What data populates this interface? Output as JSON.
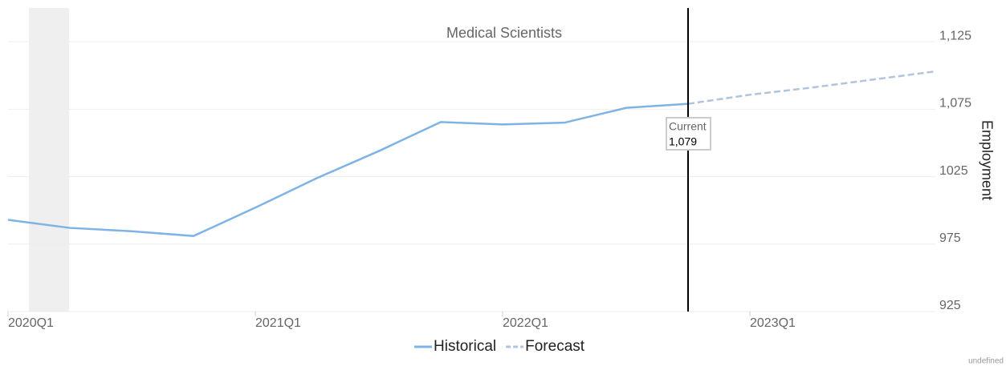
{
  "chart_data": {
    "type": "line",
    "title": "Medical Scientists",
    "y_axis_label": "Employment",
    "categories": [
      "2020Q1",
      null,
      null,
      null,
      "2021Q1",
      null,
      null,
      null,
      "2022Q1",
      null,
      null,
      null,
      "2023Q1",
      null,
      null,
      null
    ],
    "series": [
      {
        "name": "Historical",
        "color": "#7eb3e6",
        "dashed": false,
        "values": [
          993,
          987,
          984.5,
          981,
          1002,
          1024,
          1044,
          1065.5,
          1063.7,
          1065,
          1076,
          1079,
          null,
          null,
          null,
          null
        ]
      },
      {
        "name": "Forecast",
        "color": "#b0c4de",
        "dashed": true,
        "values": [
          null,
          null,
          null,
          null,
          null,
          null,
          null,
          null,
          null,
          null,
          null,
          1079,
          1085.7,
          1091,
          1097,
          1103
        ]
      }
    ],
    "ylim": [
      925,
      1150
    ],
    "yticks": [
      925,
      975,
      1025,
      {
        "value": 1075,
        "label": "1,075"
      },
      {
        "value": 1125,
        "label": "1,125"
      }
    ],
    "grid": true,
    "annotation": {
      "label": "Current",
      "index": 11,
      "value": 1079,
      "value_label": "1,079"
    },
    "footer": "undefined"
  }
}
